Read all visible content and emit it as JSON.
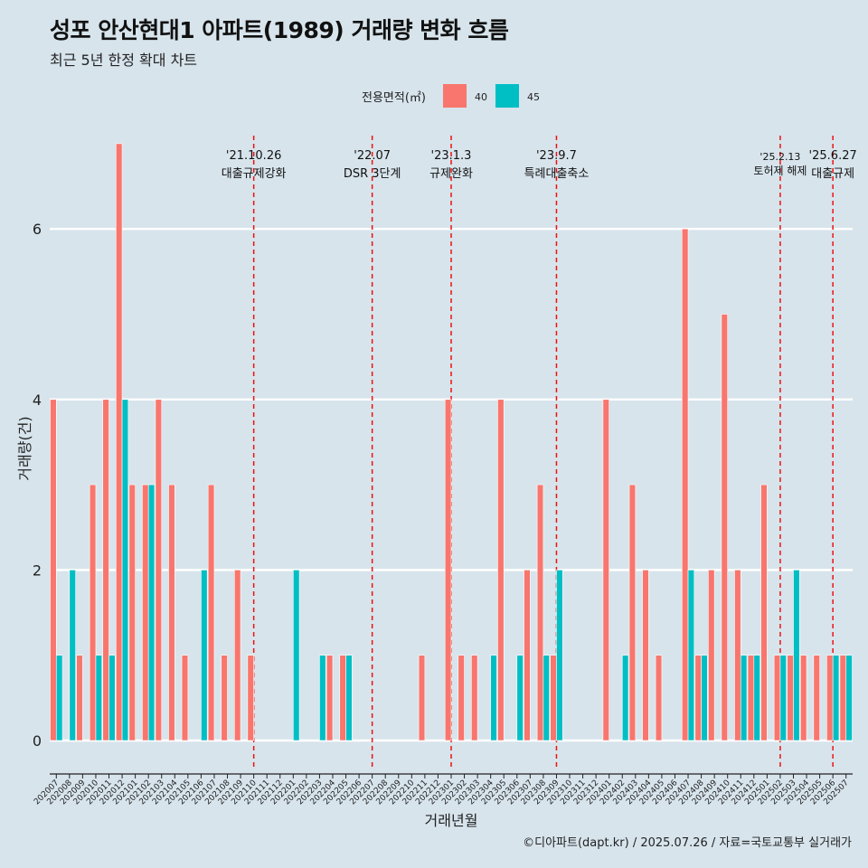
{
  "title": "성포 안산현대1 아파트(1989) 거래량 변화 흐름",
  "subtitle": "최근 5년 한정 확대 차트",
  "caption": "©디아파트(dapt.kr) / 2025.07.26 / 자료=국토교통부 실거래가",
  "colors": {
    "series_40": "#f8766d",
    "series_45": "#00bfc4",
    "background": "#d7e4ec",
    "grid": "#ffffff",
    "event_line": "#ee1111"
  },
  "chart_data": {
    "type": "bar",
    "title": "성포 안산현대1 아파트(1989) 거래량 변화 흐름",
    "xlabel": "거래년월",
    "ylabel": "거래량(건)",
    "ylim": [
      -0.35,
      7.2
    ],
    "yticks": [
      0,
      2,
      4,
      6
    ],
    "legend_title": "전용면적(㎡)",
    "legend_position": "top",
    "categories": [
      "202007",
      "202008",
      "202009",
      "202010",
      "202011",
      "202012",
      "202101",
      "202102",
      "202103",
      "202104",
      "202105",
      "202106",
      "202107",
      "202108",
      "202109",
      "202110",
      "202111",
      "202112",
      "202201",
      "202202",
      "202203",
      "202204",
      "202205",
      "202206",
      "202207",
      "202208",
      "202209",
      "202210",
      "202211",
      "202212",
      "202301",
      "202302",
      "202303",
      "202304",
      "202305",
      "202306",
      "202307",
      "202308",
      "202309",
      "202310",
      "202311",
      "202312",
      "202401",
      "202402",
      "202403",
      "202404",
      "202405",
      "202406",
      "202407",
      "202408",
      "202409",
      "202410",
      "202411",
      "202412",
      "202501",
      "202502",
      "202503",
      "202504",
      "202505",
      "202506",
      "202507"
    ],
    "series": [
      {
        "name": "40",
        "values": [
          4,
          0,
          1,
          3,
          4,
          7,
          3,
          3,
          4,
          3,
          1,
          0,
          3,
          1,
          2,
          1,
          0,
          0,
          0,
          0,
          0,
          1,
          1,
          0,
          0,
          0,
          0,
          0,
          1,
          0,
          4,
          1,
          1,
          0,
          4,
          0,
          2,
          3,
          1,
          0,
          0,
          0,
          4,
          0,
          3,
          2,
          1,
          0,
          6,
          1,
          2,
          5,
          2,
          1,
          3,
          1,
          1,
          1,
          1,
          1,
          1
        ]
      },
      {
        "name": "45",
        "values": [
          1,
          2,
          0,
          1,
          1,
          4,
          0,
          3,
          0,
          0,
          0,
          2,
          0,
          0,
          0,
          0,
          0,
          0,
          2,
          0,
          1,
          0,
          1,
          0,
          0,
          0,
          0,
          0,
          0,
          0,
          0,
          0,
          0,
          1,
          0,
          1,
          0,
          1,
          2,
          0,
          0,
          0,
          0,
          1,
          0,
          0,
          0,
          0,
          2,
          1,
          0,
          0,
          1,
          1,
          0,
          1,
          2,
          0,
          0,
          1,
          1
        ]
      }
    ],
    "events": [
      {
        "at": "202110",
        "date": "'21.10.26",
        "label": "대출규제강화"
      },
      {
        "at": "202207",
        "date": "'22.07",
        "label": "DSR 3단계"
      },
      {
        "at": "202301",
        "date": "'23.1.3",
        "label": "규제완화"
      },
      {
        "at": "202309",
        "date": "'23.9.7",
        "label": "특례대출축소"
      },
      {
        "at": "202502",
        "date": "'25.2.13",
        "label": "토허제 해제"
      },
      {
        "at": "202506",
        "date": "'25.6.27",
        "label": "대출규제"
      }
    ]
  }
}
